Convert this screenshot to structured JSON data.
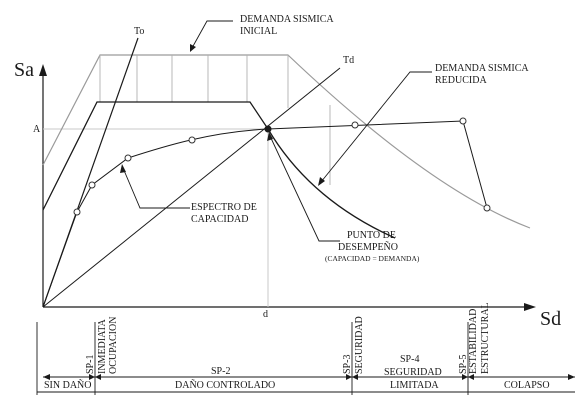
{
  "axes": {
    "y_label": "Sa",
    "x_label": "Sd",
    "a_tick": "A",
    "d_tick": "d"
  },
  "lines": {
    "to_label": "To",
    "td_label": "Td"
  },
  "annotations": {
    "demanda_inicial_1": "DEMANDA SISMICA",
    "demanda_inicial_2": "INICIAL",
    "demanda_reducida_1": "DEMANDA SISMICA",
    "demanda_reducida_2": "REDUCIDA",
    "espectro_1": "ESPECTRO DE",
    "espectro_2": "CAPACIDAD",
    "punto_1": "PUNTO DE",
    "punto_2": "DESEMPEÑO",
    "punto_3": "(CAPACIDAD = DEMANDA)"
  },
  "performance_levels": {
    "sp1_code": "SP-1",
    "sp1_name_1": "INMEDIATA",
    "sp1_name_2": "OCUPACION",
    "sp2_code": "SP-2",
    "sp2_name": "DAÑO CONTROLADO",
    "sp3_code": "SP-3",
    "sp3_name": "SEGURIDAD",
    "sp4_code": "SP-4",
    "sp4_name_1": "SEGURIDAD",
    "sp4_name_2": "LIMITADA",
    "sp5_code": "SP-5",
    "sp5_name_1": "ESTABILIDAD",
    "sp5_name_2": "ESTRUCTURAL",
    "sin_dano": "SIN DAÑO",
    "colapso": "COLAPSO"
  },
  "colors": {
    "ink": "#1a1a1a",
    "gray_curve": "#9a9a9a",
    "light_grid": "#c8c8c8"
  }
}
